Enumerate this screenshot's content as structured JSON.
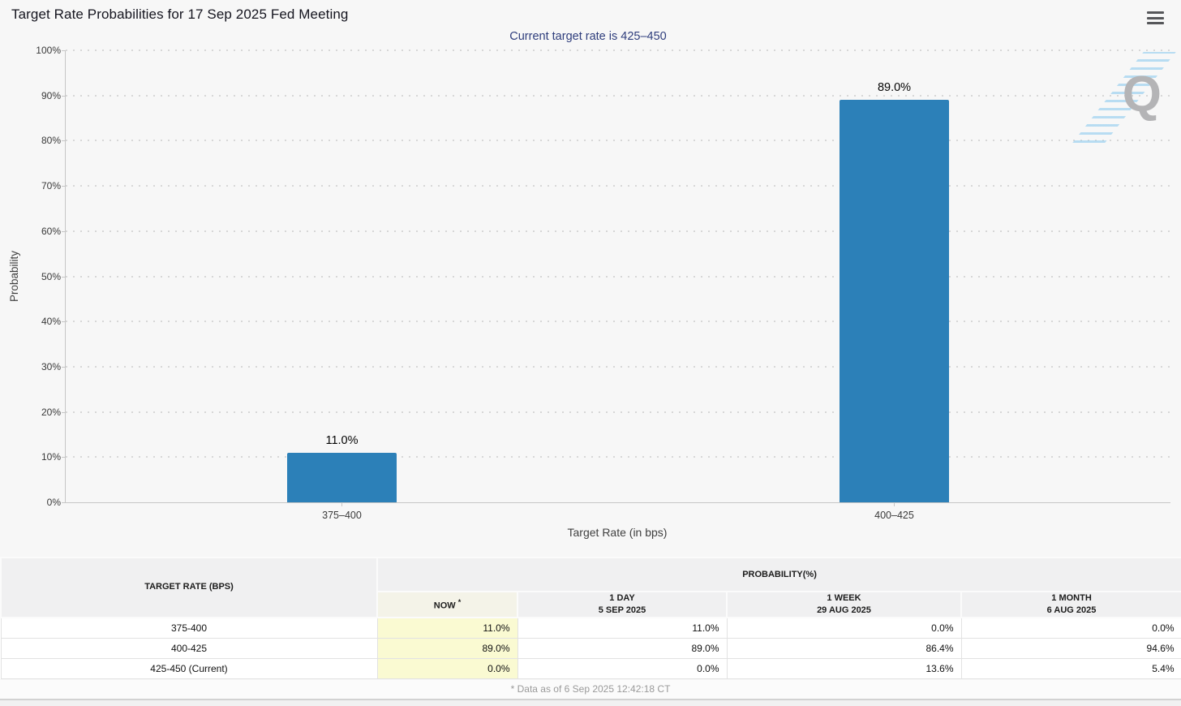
{
  "chart_data": {
    "type": "bar",
    "title": "Target Rate Probabilities for 17 Sep 2025 Fed Meeting",
    "subtitle": "Current target rate is 425–450",
    "xlabel": "Target Rate (in bps)",
    "ylabel": "Probability",
    "categories": [
      "375–400",
      "400–425"
    ],
    "values": [
      11.0,
      89.0
    ],
    "value_labels": [
      "11.0%",
      "89.0%"
    ],
    "ylim": [
      0,
      100
    ],
    "y_tick_step": 10,
    "y_tick_suffix": "%",
    "grid": "horizontal-dotted",
    "legend": "none",
    "bar_color": "#2C80B8"
  },
  "header": {
    "menu_icon": "hamburger-icon"
  },
  "watermark": {
    "letter": "Q"
  },
  "table": {
    "col1_header": "TARGET RATE (BPS)",
    "group_header": "PROBABILITY(%)",
    "columns": [
      {
        "label": "NOW",
        "sup": "*",
        "sub": ""
      },
      {
        "label": "1 DAY",
        "sup": "",
        "sub": "5 SEP 2025"
      },
      {
        "label": "1 WEEK",
        "sup": "",
        "sub": "29 AUG 2025"
      },
      {
        "label": "1 MONTH",
        "sup": "",
        "sub": "6 AUG 2025"
      }
    ],
    "rows": [
      {
        "rate": "375-400",
        "values": [
          "11.0%",
          "11.0%",
          "0.0%",
          "0.0%"
        ]
      },
      {
        "rate": "400-425",
        "values": [
          "89.0%",
          "89.0%",
          "86.4%",
          "94.6%"
        ]
      },
      {
        "rate": "425-450 (Current)",
        "values": [
          "0.0%",
          "0.0%",
          "13.6%",
          "5.4%"
        ]
      }
    ],
    "now_highlight_color": "#FAFAD2",
    "now_header_color": "#F4F3E8"
  },
  "footer": {
    "note": "* Data as of 6 Sep 2025 12:42:18 CT"
  }
}
